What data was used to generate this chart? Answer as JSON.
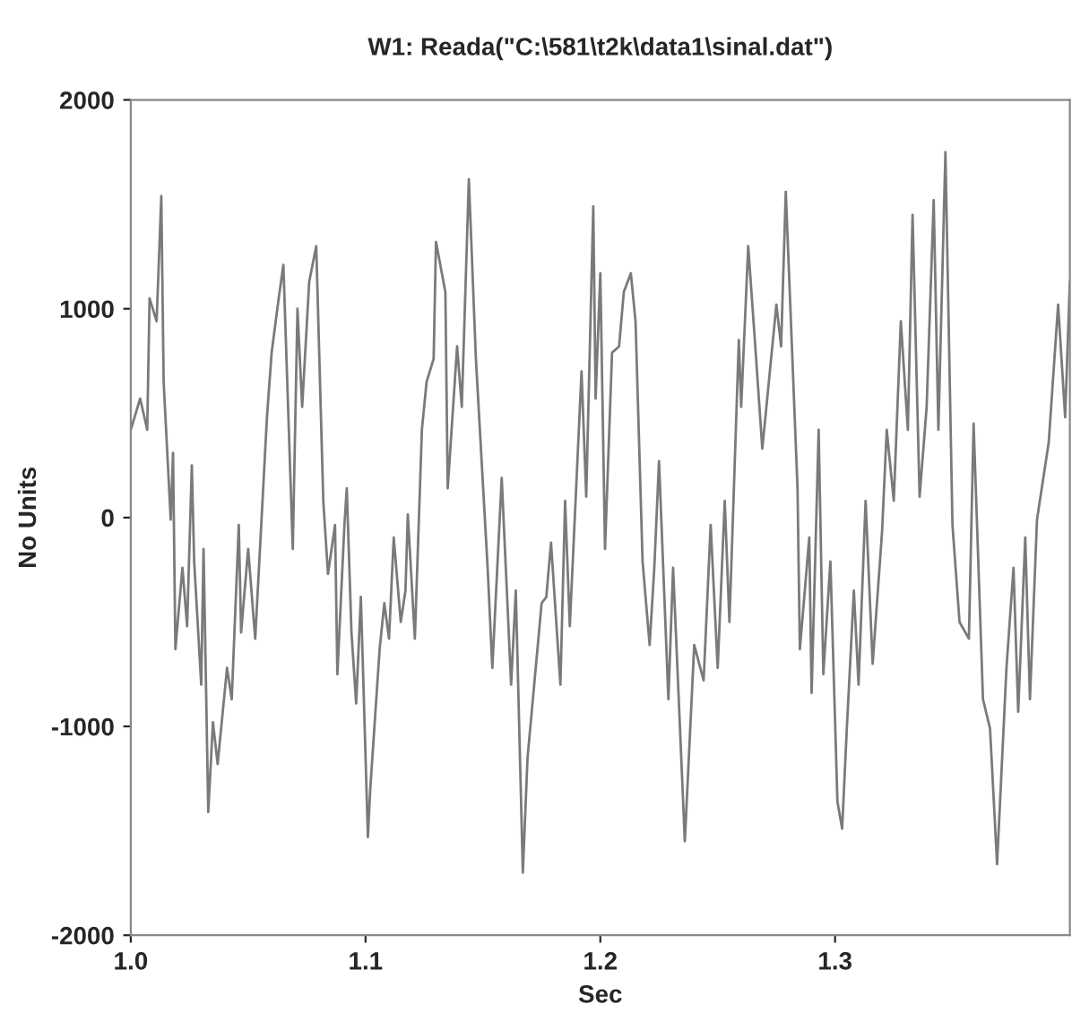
{
  "chart_data": {
    "type": "line",
    "title": "W1: Reada(\"C:\\581\\t2k\\data1\\sinal.dat\")",
    "xlabel": "Sec",
    "ylabel": "No Units",
    "xlim": [
      1.0,
      1.4
    ],
    "xticks": [
      {
        "value": 1.0,
        "label": "1.0"
      },
      {
        "value": 1.1,
        "label": "1.1"
      },
      {
        "value": 1.2,
        "label": "1.2"
      },
      {
        "value": 1.3,
        "label": "1.3"
      }
    ],
    "ylim": [
      -2000,
      2000
    ],
    "yticks": [
      -2000,
      -1000,
      0,
      1000,
      2000
    ],
    "grid": false,
    "legend": false,
    "marker": "none",
    "line_style": "solid",
    "series": [
      {
        "color": "#7a7a7a",
        "x": [
          1.0,
          1.004,
          1.007,
          1.008,
          1.011,
          1.013,
          1.014,
          1.017,
          1.018,
          1.019,
          1.022,
          1.024,
          1.026,
          1.027,
          1.03,
          1.031,
          1.033,
          1.035,
          1.037,
          1.041,
          1.043,
          1.046,
          1.047,
          1.05,
          1.053,
          1.058,
          1.06,
          1.063,
          1.065,
          1.069,
          1.071,
          1.073,
          1.076,
          1.079,
          1.082,
          1.084,
          1.087,
          1.088,
          1.091,
          1.092,
          1.094,
          1.096,
          1.098,
          1.101,
          1.102,
          1.106,
          1.108,
          1.11,
          1.112,
          1.115,
          1.117,
          1.118,
          1.121,
          1.124,
          1.126,
          1.129,
          1.13,
          1.134,
          1.135,
          1.139,
          1.141,
          1.144,
          1.147,
          1.152,
          1.154,
          1.158,
          1.162,
          1.164,
          1.167,
          1.169,
          1.175,
          1.177,
          1.179,
          1.183,
          1.185,
          1.187,
          1.192,
          1.194,
          1.197,
          1.198,
          1.2,
          1.202,
          1.205,
          1.208,
          1.21,
          1.213,
          1.215,
          1.218,
          1.221,
          1.223,
          1.225,
          1.229,
          1.231,
          1.236,
          1.24,
          1.244,
          1.247,
          1.25,
          1.253,
          1.255,
          1.259,
          1.26,
          1.263,
          1.266,
          1.269,
          1.275,
          1.277,
          1.279,
          1.284,
          1.285,
          1.289,
          1.29,
          1.293,
          1.295,
          1.298,
          1.301,
          1.303,
          1.305,
          1.308,
          1.31,
          1.313,
          1.316,
          1.32,
          1.322,
          1.325,
          1.328,
          1.331,
          1.333,
          1.336,
          1.339,
          1.342,
          1.344,
          1.347,
          1.35,
          1.353,
          1.357,
          1.359,
          1.363,
          1.366,
          1.369,
          1.373,
          1.376,
          1.378,
          1.381,
          1.383,
          1.386,
          1.391,
          1.395,
          1.398,
          1.4
        ],
        "values": [
          420,
          570,
          420,
          1050,
          940,
          1540,
          650,
          -10,
          310,
          -630,
          -240,
          -520,
          250,
          -210,
          -800,
          -150,
          -1410,
          -980,
          -1180,
          -720,
          -870,
          -35,
          -550,
          -150,
          -580,
          480,
          790,
          1050,
          1210,
          -150,
          1000,
          530,
          1130,
          1300,
          80,
          -270,
          -35,
          -750,
          -35,
          140,
          -550,
          -890,
          -380,
          -1530,
          -1300,
          -630,
          -410,
          -580,
          -95,
          -500,
          -350,
          15,
          -580,
          420,
          650,
          760,
          1320,
          1080,
          140,
          820,
          530,
          1620,
          760,
          -240,
          -720,
          190,
          -800,
          -350,
          -1700,
          -1150,
          -410,
          -380,
          -120,
          -800,
          80,
          -520,
          700,
          100,
          1490,
          570,
          1170,
          -150,
          790,
          820,
          1080,
          1170,
          940,
          -210,
          -610,
          -240,
          270,
          -870,
          -240,
          -1550,
          -610,
          -780,
          -35,
          -720,
          80,
          -500,
          850,
          530,
          1300,
          820,
          330,
          1020,
          820,
          1560,
          140,
          -630,
          -95,
          -840,
          420,
          -750,
          -210,
          -1360,
          -1490,
          -1010,
          -350,
          -800,
          80,
          -700,
          -70,
          420,
          80,
          940,
          420,
          1450,
          100,
          530,
          1520,
          420,
          1750,
          -35,
          -500,
          -580,
          450,
          -870,
          -1010,
          -1660,
          -720,
          -240,
          -930,
          -95,
          -870,
          -10,
          360,
          1020,
          480,
          1130
        ]
      }
    ]
  }
}
